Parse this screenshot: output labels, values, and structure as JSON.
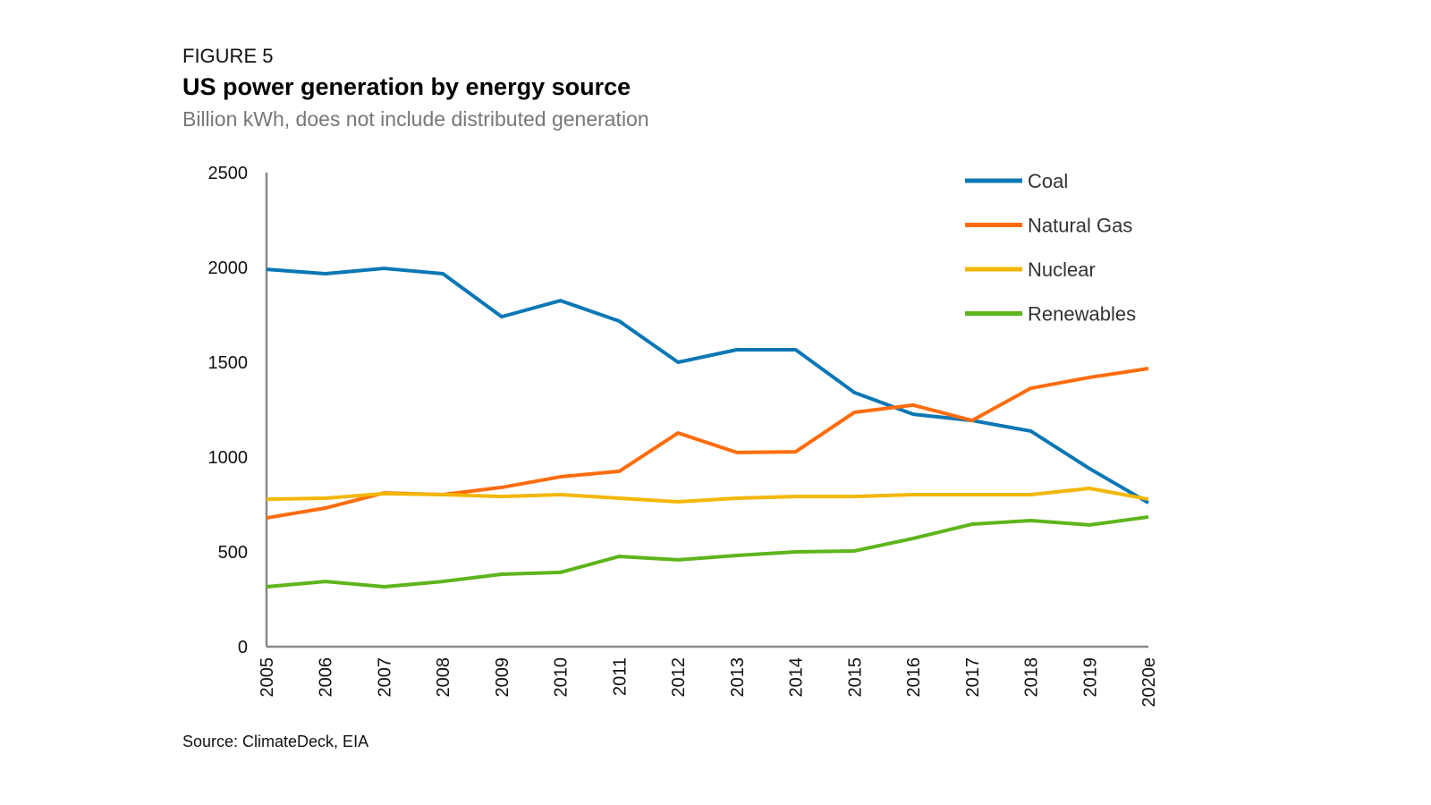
{
  "figure_label": "FIGURE 5",
  "source": "Source: ClimateDeck, EIA",
  "chart_data": {
    "type": "line",
    "title": "US power generation by energy source",
    "subtitle": "Billion kWh, does not include distributed generation",
    "xlabel": "",
    "ylabel": "",
    "ylim": [
      0,
      2500
    ],
    "yticks": [
      0,
      500,
      1000,
      1500,
      2000,
      2500
    ],
    "categories": [
      "2005",
      "2006",
      "2007",
      "2008",
      "2009",
      "2010",
      "2011",
      "2012",
      "2013",
      "2014",
      "2015",
      "2016",
      "2017",
      "2018",
      "2019",
      "2020e"
    ],
    "legend_position": "top-right",
    "grid": false,
    "series": [
      {
        "name": "Coal",
        "color": "#0a77b5",
        "values": [
          1990,
          1967,
          1995,
          1967,
          1740,
          1825,
          1717,
          1500,
          1566,
          1566,
          1340,
          1226,
          1193,
          1137,
          939,
          759
        ]
      },
      {
        "name": "Natural Gas",
        "color": "#ff6c0c",
        "values": [
          679,
          731,
          811,
          802,
          840,
          896,
          925,
          1127,
          1024,
          1028,
          1236,
          1274,
          1193,
          1363,
          1420,
          1467
        ]
      },
      {
        "name": "Nuclear",
        "color": "#f2b705",
        "values": [
          778,
          783,
          807,
          802,
          792,
          802,
          783,
          764,
          783,
          792,
          792,
          802,
          802,
          802,
          835,
          778
        ]
      },
      {
        "name": "Renewables",
        "color": "#5db51b",
        "values": [
          316,
          344,
          316,
          344,
          382,
          392,
          476,
          458,
          481,
          500,
          505,
          571,
          646,
          665,
          642,
          684
        ]
      }
    ]
  }
}
